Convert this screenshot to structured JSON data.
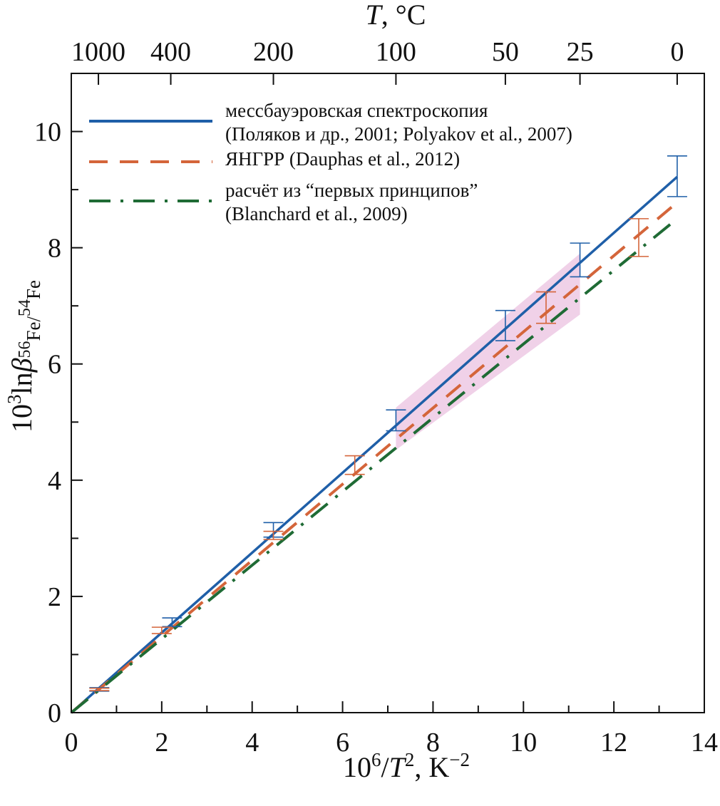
{
  "chart_data": {
    "type": "line",
    "xlabel": {
      "base": "10",
      "base_sup": "6",
      "mid": "/",
      "var": "T",
      "var_sup": "2",
      "tail": ", K",
      "tail_sup": "−2"
    },
    "ylabel": {
      "base": "10",
      "base_sup": "3",
      "mid": "ln",
      "var": "β",
      "sub1_sup": "56",
      "sub1": "Fe",
      "sub_slash": "/",
      "sub2_sup": "54",
      "sub2": "Fe"
    },
    "top_axis_title": {
      "var": "T",
      "tail": ", °C"
    },
    "xlim": [
      0,
      14
    ],
    "ylim": [
      0,
      11
    ],
    "x_ticks": [
      {
        "value": 0,
        "label": "0"
      },
      {
        "value": 2,
        "label": "2"
      },
      {
        "value": 4,
        "label": "4"
      },
      {
        "value": 6,
        "label": "6"
      },
      {
        "value": 8,
        "label": "8"
      },
      {
        "value": 10,
        "label": "10"
      },
      {
        "value": 12,
        "label": "12"
      },
      {
        "value": 14,
        "label": "14"
      }
    ],
    "y_ticks": [
      {
        "value": 0,
        "label": "0"
      },
      {
        "value": 2,
        "label": "2"
      },
      {
        "value": 4,
        "label": "4"
      },
      {
        "value": 6,
        "label": "6"
      },
      {
        "value": 8,
        "label": "8"
      },
      {
        "value": 10,
        "label": "10"
      }
    ],
    "top_ticks": [
      {
        "value": 0.6,
        "label": "1000"
      },
      {
        "value": 2.2,
        "label": "400"
      },
      {
        "value": 4.47,
        "label": "200"
      },
      {
        "value": 7.18,
        "label": "100"
      },
      {
        "value": 9.6,
        "label": "50"
      },
      {
        "value": 11.25,
        "label": "25"
      },
      {
        "value": 13.4,
        "label": "0"
      }
    ],
    "series": [
      {
        "name": "mossbauer",
        "color": "#1f5fa8",
        "style": "solid",
        "legend_lines": [
          "мессбауэровская спектроскопия",
          "(Поляков и др., 2001; Polyakov et al., 2007)"
        ],
        "x": [
          0,
          13.4
        ],
        "y": [
          0,
          9.22
        ],
        "error_bars": [
          {
            "x": 0.62,
            "low": 0.37,
            "high": 0.43
          },
          {
            "x": 2.23,
            "low": 1.48,
            "high": 1.63
          },
          {
            "x": 4.47,
            "low": 3.02,
            "high": 3.27
          },
          {
            "x": 7.18,
            "low": 4.85,
            "high": 5.21
          },
          {
            "x": 9.6,
            "low": 6.4,
            "high": 6.92
          },
          {
            "x": 11.25,
            "low": 7.5,
            "high": 8.08
          },
          {
            "x": 13.4,
            "low": 8.88,
            "high": 9.58
          }
        ]
      },
      {
        "name": "nrixs",
        "color": "#d4653a",
        "style": "dashed",
        "legend_lines": [
          "ЯНГРР (Dauphas et al., 2012)"
        ],
        "x": [
          0,
          13.4
        ],
        "y": [
          0,
          8.78
        ],
        "error_bars": [
          {
            "x": 0.62,
            "low": 0.38,
            "high": 0.42
          },
          {
            "x": 2.0,
            "low": 1.36,
            "high": 1.47
          },
          {
            "x": 4.47,
            "low": 2.98,
            "high": 3.12
          },
          {
            "x": 6.27,
            "low": 4.1,
            "high": 4.42
          },
          {
            "x": 10.5,
            "low": 6.7,
            "high": 7.24
          },
          {
            "x": 12.55,
            "low": 7.85,
            "high": 8.5
          }
        ]
      },
      {
        "name": "first_principles",
        "color": "#1f6b35",
        "style": "dash-dot",
        "legend_lines": [
          "расчёт из “первых принципов”",
          "(Blanchard et al., 2009)"
        ],
        "x": [
          0,
          13.4
        ],
        "y": [
          0,
          8.5
        ]
      }
    ],
    "shaded_region": {
      "color": "#d070b8",
      "points": [
        [
          7.18,
          4.52
        ],
        [
          7.18,
          5.25
        ],
        [
          11.25,
          7.9
        ],
        [
          11.25,
          6.85
        ]
      ]
    }
  }
}
